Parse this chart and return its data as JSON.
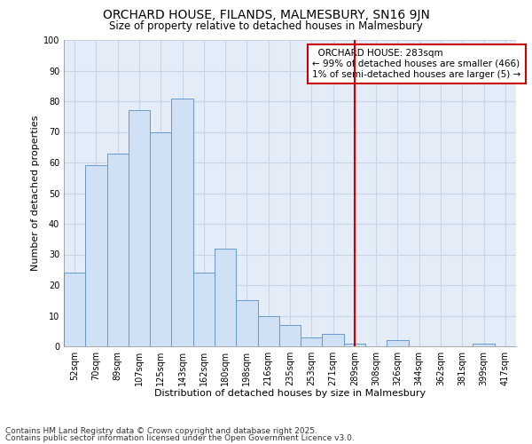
{
  "title": "ORCHARD HOUSE, FILANDS, MALMESBURY, SN16 9JN",
  "subtitle": "Size of property relative to detached houses in Malmesbury",
  "xlabel": "Distribution of detached houses by size in Malmesbury",
  "ylabel": "Number of detached properties",
  "bar_labels": [
    "52sqm",
    "70sqm",
    "89sqm",
    "107sqm",
    "125sqm",
    "143sqm",
    "162sqm",
    "180sqm",
    "198sqm",
    "216sqm",
    "235sqm",
    "253sqm",
    "271sqm",
    "289sqm",
    "308sqm",
    "326sqm",
    "344sqm",
    "362sqm",
    "381sqm",
    "399sqm",
    "417sqm"
  ],
  "bar_values": [
    24,
    59,
    63,
    77,
    70,
    81,
    24,
    32,
    15,
    10,
    7,
    3,
    4,
    1,
    0,
    2,
    0,
    0,
    0,
    1,
    0
  ],
  "bar_color": "#d0e0f5",
  "bar_edge_color": "#6699cc",
  "grid_color": "#c8d4e8",
  "background_color": "#e4ecf7",
  "vline_index": 13,
  "vline_color": "#cc0000",
  "legend_title": "ORCHARD HOUSE: 283sqm",
  "legend_line1": "← 99% of detached houses are smaller (466)",
  "legend_line2": "1% of semi-detached houses are larger (5) →",
  "ylim": [
    0,
    100
  ],
  "yticks": [
    0,
    10,
    20,
    30,
    40,
    50,
    60,
    70,
    80,
    90,
    100
  ],
  "footnote1": "Contains HM Land Registry data © Crown copyright and database right 2025.",
  "footnote2": "Contains public sector information licensed under the Open Government Licence v3.0.",
  "title_fontsize": 10,
  "subtitle_fontsize": 8.5,
  "axis_label_fontsize": 8,
  "tick_fontsize": 7,
  "legend_fontsize": 7.5,
  "footnote_fontsize": 6.5
}
